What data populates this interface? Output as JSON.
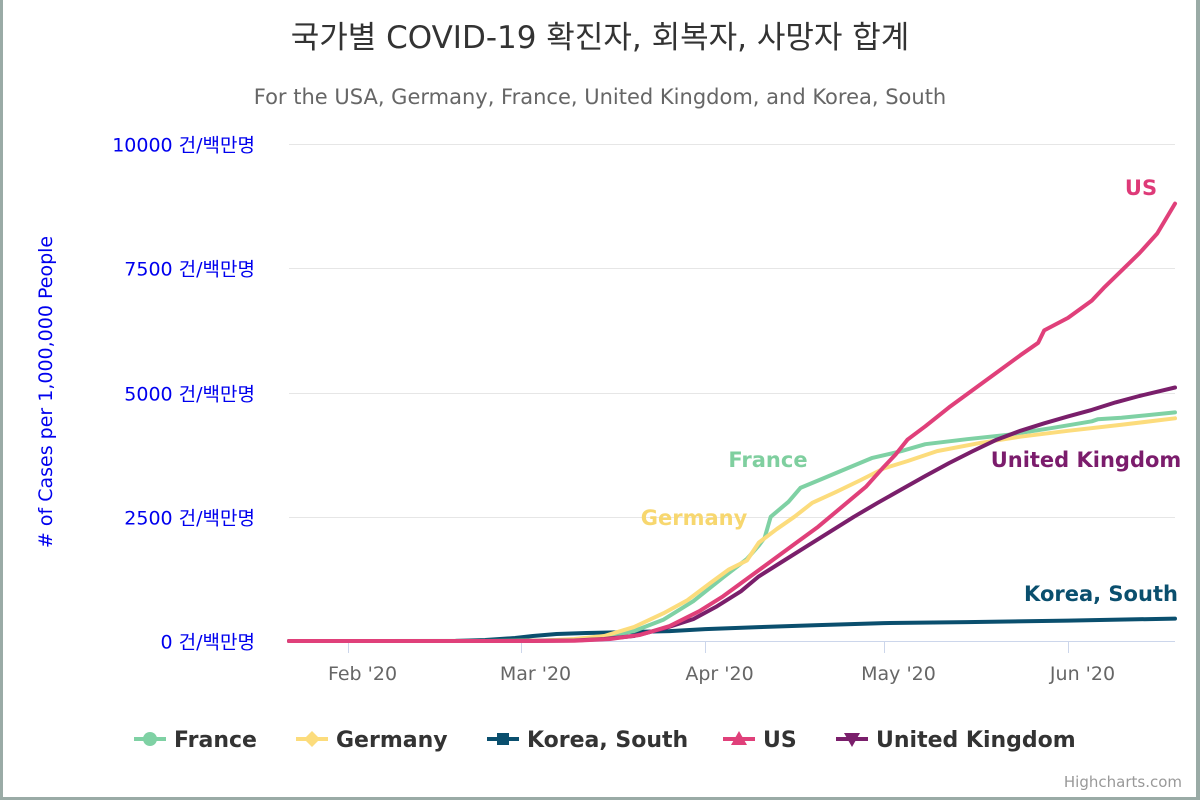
{
  "chart_data": {
    "type": "line",
    "title": "국가별 COVID-19 확진자, 회복자, 사망자 합계",
    "subtitle": "For the USA, Germany, France, United Kingdom, and Korea, South",
    "ylabel": "# of Cases per 1,000,000 People",
    "ytick_suffix": " 건/백만명",
    "ylim": [
      0,
      10000
    ],
    "yticks": [
      0,
      2500,
      5000,
      7500,
      10000
    ],
    "xlim": [
      "2020-01-22",
      "2020-06-19"
    ],
    "xticks": [
      {
        "date": "2020-02-01",
        "label": "Feb '20"
      },
      {
        "date": "2020-03-01",
        "label": "Mar '20"
      },
      {
        "date": "2020-04-01",
        "label": "Apr '20"
      },
      {
        "date": "2020-05-01",
        "label": "May '20"
      },
      {
        "date": "2020-06-01",
        "label": "Jun '20"
      }
    ],
    "grid": true,
    "legend": "bottom",
    "series": [
      {
        "name": "France",
        "color": "#7fd1a4",
        "marker": "circle",
        "label_color": "#7fcf9f",
        "points": [
          [
            "2020-01-22",
            0
          ],
          [
            "2020-02-29",
            2
          ],
          [
            "2020-03-09",
            20
          ],
          [
            "2020-03-15",
            70
          ],
          [
            "2020-03-20",
            200
          ],
          [
            "2020-03-25",
            430
          ],
          [
            "2020-03-30",
            800
          ],
          [
            "2020-04-04",
            1280
          ],
          [
            "2020-04-08",
            1650
          ],
          [
            "2020-04-10",
            1920
          ],
          [
            "2020-04-11",
            2080
          ],
          [
            "2020-04-12",
            2500
          ],
          [
            "2020-04-15",
            2800
          ],
          [
            "2020-04-17",
            3080
          ],
          [
            "2020-04-21",
            3280
          ],
          [
            "2020-04-25",
            3480
          ],
          [
            "2020-04-29",
            3680
          ],
          [
            "2020-05-04",
            3820
          ],
          [
            "2020-05-08",
            3960
          ],
          [
            "2020-05-15",
            4060
          ],
          [
            "2020-05-22",
            4150
          ],
          [
            "2020-05-29",
            4280
          ],
          [
            "2020-06-05",
            4420
          ],
          [
            "2020-06-06",
            4460
          ],
          [
            "2020-06-10",
            4490
          ],
          [
            "2020-06-19",
            4600
          ]
        ]
      },
      {
        "name": "Germany",
        "color": "#fcdc7c",
        "marker": "diamond",
        "label_color": "#f7d76f",
        "points": [
          [
            "2020-01-22",
            0
          ],
          [
            "2020-02-25",
            1
          ],
          [
            "2020-03-05",
            10
          ],
          [
            "2020-03-10",
            40
          ],
          [
            "2020-03-15",
            100
          ],
          [
            "2020-03-20",
            280
          ],
          [
            "2020-03-25",
            560
          ],
          [
            "2020-03-29",
            820
          ],
          [
            "2020-04-02",
            1180
          ],
          [
            "2020-04-05",
            1440
          ],
          [
            "2020-04-08",
            1620
          ],
          [
            "2020-04-10",
            1980
          ],
          [
            "2020-04-13",
            2250
          ],
          [
            "2020-04-16",
            2500
          ],
          [
            "2020-04-19",
            2780
          ],
          [
            "2020-04-23",
            3000
          ],
          [
            "2020-04-27",
            3230
          ],
          [
            "2020-05-01",
            3470
          ],
          [
            "2020-05-05",
            3620
          ],
          [
            "2020-05-10",
            3820
          ],
          [
            "2020-05-17",
            3980
          ],
          [
            "2020-05-24",
            4110
          ],
          [
            "2020-06-01",
            4230
          ],
          [
            "2020-06-10",
            4350
          ],
          [
            "2020-06-19",
            4480
          ]
        ]
      },
      {
        "name": "Korea, South",
        "color": "#0a4f6e",
        "marker": "square",
        "label_color": "#0a4f6e",
        "points": [
          [
            "2020-01-22",
            0
          ],
          [
            "2020-02-19",
            3
          ],
          [
            "2020-02-24",
            20
          ],
          [
            "2020-02-29",
            60
          ],
          [
            "2020-03-03",
            100
          ],
          [
            "2020-03-07",
            140
          ],
          [
            "2020-03-12",
            160
          ],
          [
            "2020-03-19",
            180
          ],
          [
            "2020-03-26",
            200
          ],
          [
            "2020-04-01",
            240
          ],
          [
            "2020-04-10",
            280
          ],
          [
            "2020-04-20",
            320
          ],
          [
            "2020-05-01",
            360
          ],
          [
            "2020-05-15",
            380
          ],
          [
            "2020-06-01",
            410
          ],
          [
            "2020-06-19",
            450
          ]
        ]
      },
      {
        "name": "US",
        "color": "#e0407a",
        "marker": "triangle",
        "label_color": "#de3a78",
        "points": [
          [
            "2020-01-22",
            0
          ],
          [
            "2020-03-01",
            0
          ],
          [
            "2020-03-10",
            5
          ],
          [
            "2020-03-16",
            40
          ],
          [
            "2020-03-21",
            120
          ],
          [
            "2020-03-26",
            300
          ],
          [
            "2020-03-31",
            600
          ],
          [
            "2020-04-04",
            900
          ],
          [
            "2020-04-08",
            1250
          ],
          [
            "2020-04-12",
            1600
          ],
          [
            "2020-04-16",
            1950
          ],
          [
            "2020-04-20",
            2300
          ],
          [
            "2020-04-24",
            2700
          ],
          [
            "2020-04-28",
            3100
          ],
          [
            "2020-05-01",
            3500
          ],
          [
            "2020-05-03",
            3750
          ],
          [
            "2020-05-05",
            4050
          ],
          [
            "2020-05-08",
            4320
          ],
          [
            "2020-05-12",
            4700
          ],
          [
            "2020-05-16",
            5050
          ],
          [
            "2020-05-20",
            5400
          ],
          [
            "2020-05-24",
            5750
          ],
          [
            "2020-05-27",
            6000
          ],
          [
            "2020-05-28",
            6250
          ],
          [
            "2020-06-01",
            6500
          ],
          [
            "2020-06-05",
            6850
          ],
          [
            "2020-06-07",
            7100
          ],
          [
            "2020-06-10",
            7450
          ],
          [
            "2020-06-13",
            7800
          ],
          [
            "2020-06-16",
            8200
          ],
          [
            "2020-06-19",
            8800
          ]
        ]
      },
      {
        "name": "United Kingdom",
        "color": "#7a1f6b",
        "marker": "triangle-down",
        "label_color": "#7b1c6c",
        "points": [
          [
            "2020-01-22",
            0
          ],
          [
            "2020-03-01",
            0
          ],
          [
            "2020-03-10",
            10
          ],
          [
            "2020-03-15",
            40
          ],
          [
            "2020-03-20",
            100
          ],
          [
            "2020-03-25",
            250
          ],
          [
            "2020-03-30",
            440
          ],
          [
            "2020-04-03",
            700
          ],
          [
            "2020-04-07",
            1000
          ],
          [
            "2020-04-10",
            1300
          ],
          [
            "2020-04-14",
            1600
          ],
          [
            "2020-04-18",
            1900
          ],
          [
            "2020-04-22",
            2200
          ],
          [
            "2020-04-26",
            2500
          ],
          [
            "2020-04-30",
            2780
          ],
          [
            "2020-05-04",
            3050
          ],
          [
            "2020-05-08",
            3320
          ],
          [
            "2020-05-12",
            3580
          ],
          [
            "2020-05-16",
            3820
          ],
          [
            "2020-05-20",
            4050
          ],
          [
            "2020-05-24",
            4230
          ],
          [
            "2020-05-28",
            4380
          ],
          [
            "2020-06-01",
            4520
          ],
          [
            "2020-06-05",
            4650
          ],
          [
            "2020-06-09",
            4800
          ],
          [
            "2020-06-13",
            4930
          ],
          [
            "2020-06-19",
            5100
          ]
        ]
      }
    ]
  },
  "credits": "Highcharts.com"
}
